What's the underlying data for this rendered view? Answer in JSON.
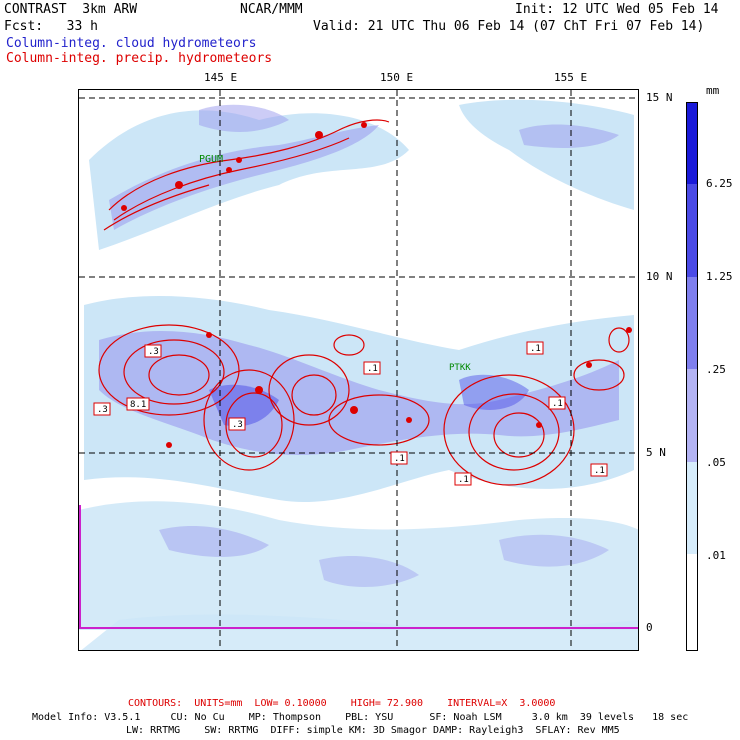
{
  "header": {
    "model": "CONTRAST  3km ARW",
    "org": "NCAR/MMM",
    "init": "Init: 12 UTC Wed 05 Feb 14",
    "fcst": "Fcst:   33 h",
    "valid": "Valid: 21 UTC Thu 06 Feb 14 (07 ChT Fri 07 Feb 14)",
    "legend_cloud": "Column-integ. cloud hydrometeors",
    "legend_precip": "Column-integ. precip. hydrometeors"
  },
  "map": {
    "lon_labels": [
      "145 E",
      "150 E",
      "155 E"
    ],
    "lat_labels": [
      "15 N",
      "10 N",
      "5 N",
      "0"
    ],
    "stations": [
      "PGUM",
      "PTKK"
    ],
    "contour_labels": [
      ".3",
      ".3",
      "8.1",
      ".3",
      ".1",
      ".1",
      ".1",
      ".1",
      ".1",
      ".1"
    ]
  },
  "colorbar": {
    "unit": "mm",
    "labels": [
      "6.25",
      "1.25",
      ".25",
      ".05",
      ".01"
    ],
    "colors": [
      "#1a1ad9",
      "#4a4ae6",
      "#7f7fee",
      "#b3b3f4",
      "#d6ecfb",
      "#ffffff"
    ]
  },
  "footer": {
    "contours": "CONTOURS:  UNITS=mm  LOW= 0.10000    HIGH= 72.900    INTERVAL=X  3.0000",
    "line1": "Model Info: V3.5.1     CU: No Cu    MP: Thompson    PBL: YSU      SF: Noah LSM     3.0 km  39 levels   18 sec",
    "line2": "LW: RRTMG    SW: RRTMG  DIFF: simple KM: 3D Smagor DAMP: Rayleigh3  SFLAY: Rev MM5"
  },
  "colors": {
    "cloud": "#9999ee",
    "cloud_light": "#cce6f7",
    "precip": "#dd0000",
    "grid": "#000000"
  }
}
